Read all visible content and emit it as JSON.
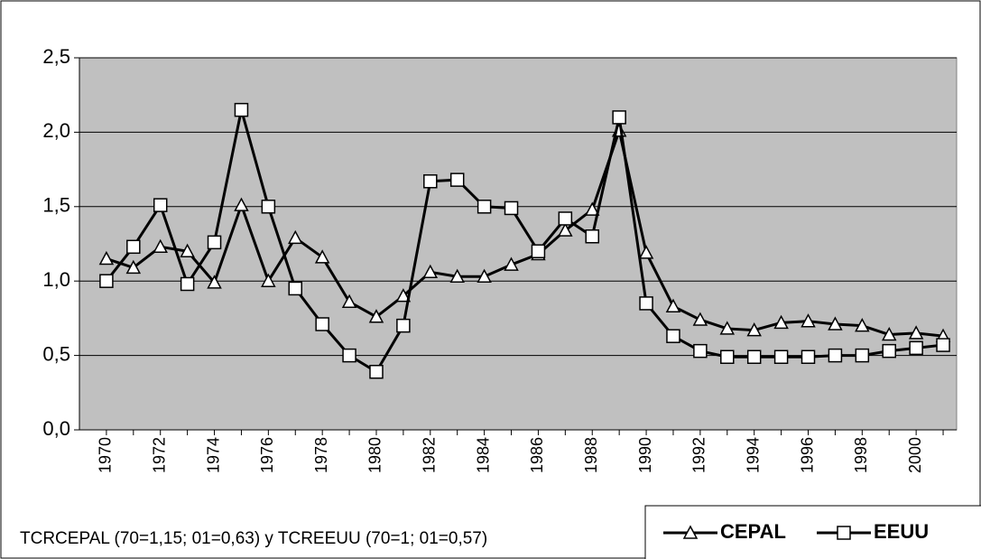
{
  "chart_data": {
    "type": "line",
    "caption": "TCRCEPAL (70=1,15; 01=0,63) y TCREEUU (70=1; 01=0,57)",
    "categories": [
      "1970",
      null,
      "1972",
      null,
      "1974",
      null,
      "1976",
      null,
      "1978",
      null,
      "1980",
      null,
      "1982",
      null,
      "1984",
      null,
      "1986",
      null,
      "1988",
      null,
      "1990",
      null,
      "1992",
      null,
      "1994",
      null,
      "1996",
      null,
      "1998",
      null,
      "2000",
      null
    ],
    "series": [
      {
        "name": "CEPAL",
        "color": "#000000",
        "marker": "triangle",
        "values": [
          1.15,
          1.09,
          1.23,
          1.2,
          0.99,
          1.51,
          1.0,
          1.29,
          1.16,
          0.86,
          0.76,
          0.9,
          1.06,
          1.03,
          1.03,
          1.11,
          1.18,
          1.34,
          1.48,
          2.01,
          1.19,
          0.83,
          0.74,
          0.68,
          0.67,
          0.72,
          0.73,
          0.71,
          0.7,
          0.64,
          0.65,
          0.63
        ]
      },
      {
        "name": "EEUU",
        "color": "#000000",
        "marker": "square",
        "values": [
          1.0,
          1.23,
          1.51,
          0.98,
          1.26,
          2.15,
          1.5,
          0.95,
          0.71,
          0.5,
          0.39,
          0.7,
          1.67,
          1.68,
          1.5,
          1.49,
          1.2,
          1.42,
          1.3,
          2.1,
          0.85,
          0.63,
          0.53,
          0.49,
          0.49,
          0.49,
          0.49,
          0.5,
          0.5,
          0.53,
          0.55,
          0.57
        ]
      }
    ],
    "ylim": [
      0,
      2.5
    ],
    "yticks": [
      {
        "value": 0,
        "label": "0,0"
      },
      {
        "value": 0.5,
        "label": "0,5"
      },
      {
        "value": 1,
        "label": "1,0"
      },
      {
        "value": 1.5,
        "label": "1,5"
      },
      {
        "value": 2,
        "label": "2,0"
      },
      {
        "value": 2.5,
        "label": "2,5"
      }
    ],
    "grid": true,
    "plot_background": "#c0c0c0",
    "legend_position": "bottom-right"
  }
}
